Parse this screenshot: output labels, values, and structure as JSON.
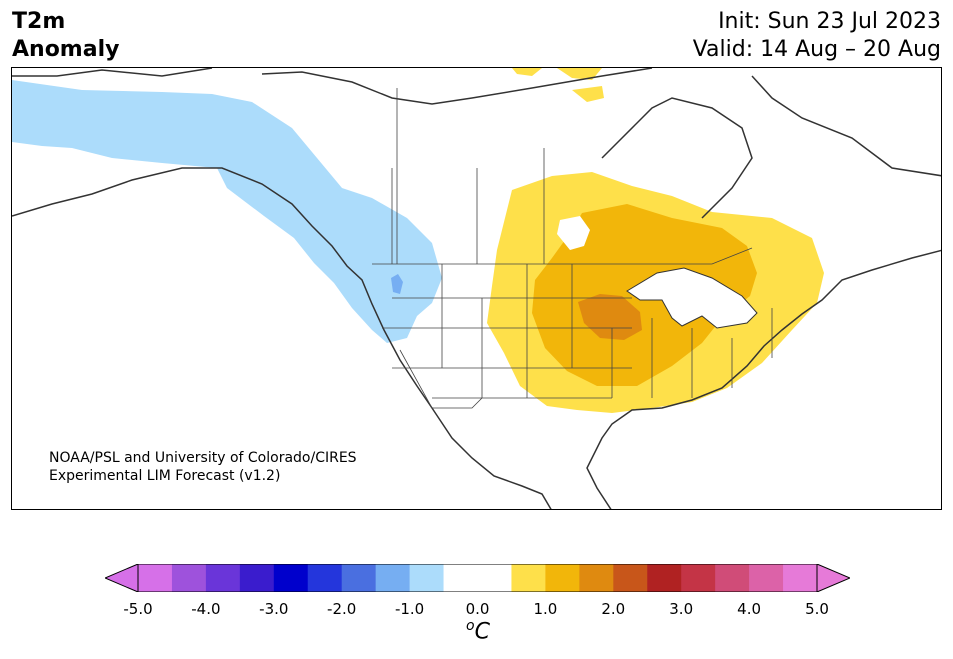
{
  "header": {
    "variable_line1": "T2m",
    "variable_line2": "Anomaly",
    "init_text": "Init: Sun 23 Jul 2023",
    "valid_text": "Valid: 14 Aug – 20 Aug"
  },
  "credit": {
    "line1": "NOAA/PSL and University of Colorado/CIRES",
    "line2": "Experimental LIM Forecast (v1.2)"
  },
  "colorbar": {
    "tick_labels": [
      "-5.0",
      "-4.0",
      "-3.0",
      "-2.0",
      "-1.0",
      "0.0",
      "1.0",
      "2.0",
      "3.0",
      "4.0",
      "5.0"
    ],
    "unit_super": "o",
    "unit_main": "C",
    "colors": [
      "#d670e8",
      "#9e52dc",
      "#6a35d9",
      "#3a1ccd",
      "#0000cc",
      "#2436dc",
      "#4a6fe0",
      "#76aef2",
      "#acdcfb",
      "#ffffff",
      "#ffffff",
      "#fee04a",
      "#f2b60a",
      "#df8a10",
      "#c8561a",
      "#b02222",
      "#c43446",
      "#d04c78",
      "#dc62a8",
      "#e67ad8"
    ]
  },
  "legend_colors": {
    "cool_anomaly": "#acdcfb",
    "warm_1": "#fee04a",
    "warm_2": "#f2b60a",
    "warm_3": "#df8a10"
  }
}
